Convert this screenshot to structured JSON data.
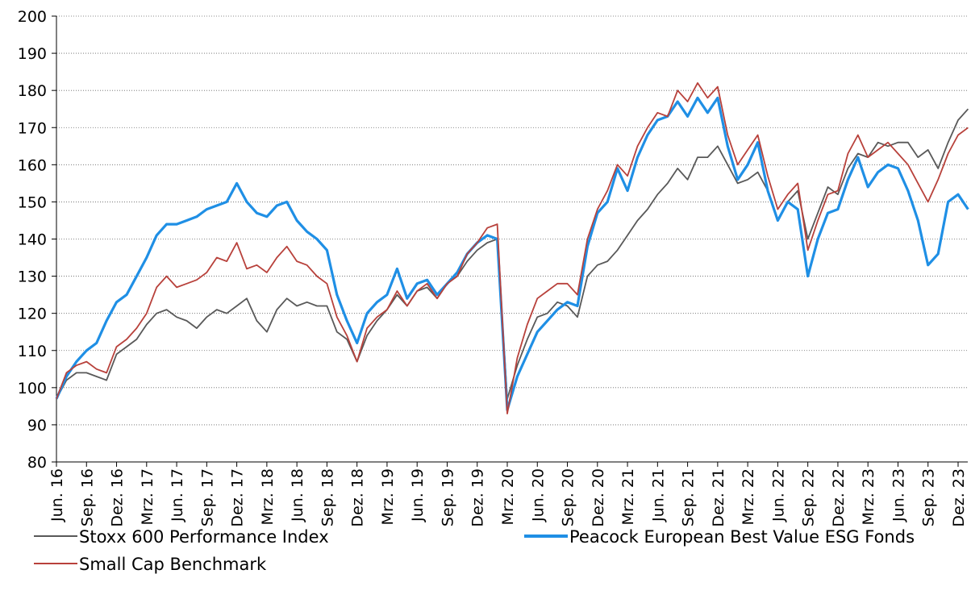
{
  "chart_data": {
    "type": "line",
    "categories": [
      "Jun. 16",
      null,
      null,
      "Sep. 16",
      null,
      null,
      "Dez. 16",
      null,
      null,
      "Mrz. 17",
      null,
      null,
      "Jun. 17",
      null,
      null,
      "Sep. 17",
      null,
      null,
      "Dez. 17",
      null,
      null,
      "Mrz. 18",
      null,
      null,
      "Jun. 18",
      null,
      null,
      "Sep. 18",
      null,
      null,
      "Dez. 18",
      null,
      null,
      "Mrz. 19",
      null,
      null,
      "Jun. 19",
      null,
      null,
      "Sep. 19",
      null,
      null,
      "Dez. 19",
      null,
      null,
      "Mrz. 20",
      null,
      null,
      "Jun. 20",
      null,
      null,
      "Sep. 20",
      null,
      null,
      "Dez. 20",
      null,
      null,
      "Mrz. 21",
      null,
      null,
      "Jun. 21",
      null,
      null,
      "Sep. 21",
      null,
      null,
      "Dez. 21",
      null,
      null,
      "Mrz. 22",
      null,
      null,
      "Jun. 22",
      null,
      null,
      "Sep. 22",
      null,
      null,
      "Dez. 22",
      null,
      null,
      "Mrz. 23",
      null,
      null,
      "Jun. 23",
      null,
      null,
      "Sep. 23",
      null,
      null,
      "Dez. 23",
      null
    ],
    "series": [
      {
        "name": "Stoxx 600 Performance Index",
        "color": "#595959",
        "values": [
          97,
          102,
          104,
          104,
          103,
          102,
          109,
          111,
          113,
          117,
          120,
          121,
          119,
          118,
          116,
          119,
          121,
          120,
          122,
          124,
          118,
          115,
          121,
          124,
          122,
          123,
          122,
          122,
          115,
          113,
          107,
          114,
          118,
          121,
          125,
          122,
          126,
          127,
          124,
          128,
          130,
          134,
          137,
          139,
          140,
          97,
          106,
          113,
          119,
          120,
          123,
          122,
          119,
          130,
          133,
          134,
          137,
          141,
          145,
          148,
          152,
          155,
          159,
          156,
          162,
          162,
          165,
          160,
          155,
          156,
          158,
          153,
          145,
          150,
          153,
          140,
          147,
          154,
          152,
          159,
          163,
          162,
          166,
          165,
          166,
          166,
          162,
          164,
          159,
          166,
          172,
          175
        ]
      },
      {
        "name": "Peacock European Best Value ESG Fonds",
        "color": "#1f8fe5",
        "values": [
          97,
          103,
          107,
          110,
          112,
          118,
          123,
          125,
          130,
          135,
          141,
          144,
          144,
          145,
          146,
          148,
          149,
          150,
          155,
          150,
          147,
          146,
          149,
          150,
          145,
          142,
          140,
          137,
          125,
          118,
          112,
          120,
          123,
          125,
          132,
          124,
          128,
          129,
          125,
          128,
          131,
          136,
          139,
          141,
          140,
          94,
          103,
          109,
          115,
          118,
          121,
          123,
          122,
          138,
          147,
          150,
          159,
          153,
          162,
          168,
          172,
          173,
          177,
          173,
          178,
          174,
          178,
          165,
          156,
          160,
          166,
          153,
          145,
          150,
          148,
          130,
          140,
          147,
          148,
          156,
          162,
          154,
          158,
          160,
          159,
          153,
          145,
          133,
          136,
          150,
          152,
          148
        ]
      },
      {
        "name": "Small Cap Benchmark",
        "color": "#b8413b",
        "values": [
          97,
          104,
          106,
          107,
          105,
          104,
          111,
          113,
          116,
          120,
          127,
          130,
          127,
          128,
          129,
          131,
          135,
          134,
          139,
          132,
          133,
          131,
          135,
          138,
          134,
          133,
          130,
          128,
          119,
          114,
          107,
          116,
          119,
          121,
          126,
          122,
          126,
          128,
          124,
          128,
          130,
          136,
          139,
          143,
          144,
          93,
          108,
          117,
          124,
          126,
          128,
          128,
          125,
          140,
          148,
          153,
          160,
          157,
          165,
          170,
          174,
          173,
          180,
          177,
          182,
          178,
          181,
          168,
          160,
          164,
          168,
          157,
          148,
          152,
          155,
          137,
          145,
          152,
          153,
          163,
          168,
          162,
          164,
          166,
          163,
          160,
          155,
          150,
          156,
          163,
          168,
          170
        ]
      }
    ],
    "ylim": [
      80,
      200
    ],
    "yticks": [
      80,
      90,
      100,
      110,
      120,
      130,
      140,
      150,
      160,
      170,
      180,
      190,
      200
    ],
    "grid": true
  }
}
